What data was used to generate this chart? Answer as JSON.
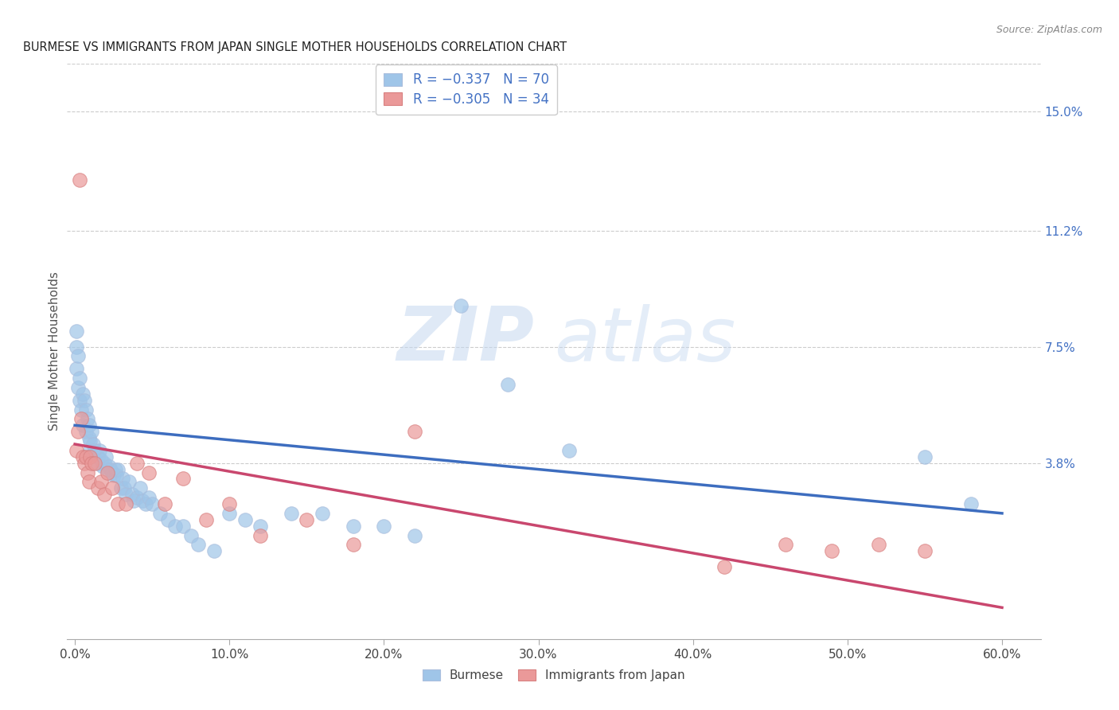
{
  "title": "BURMESE VS IMMIGRANTS FROM JAPAN SINGLE MOTHER HOUSEHOLDS CORRELATION CHART",
  "source": "Source: ZipAtlas.com",
  "xlabel_ticks": [
    "0.0%",
    "10.0%",
    "20.0%",
    "30.0%",
    "40.0%",
    "50.0%",
    "60.0%"
  ],
  "xlabel_vals": [
    0.0,
    0.1,
    0.2,
    0.3,
    0.4,
    0.5,
    0.6
  ],
  "ylabel": "Single Mother Households",
  "ylabel_ticks_right": [
    "15.0%",
    "11.2%",
    "7.5%",
    "3.8%"
  ],
  "ylabel_vals_right": [
    0.15,
    0.112,
    0.075,
    0.038
  ],
  "xlim": [
    -0.005,
    0.625
  ],
  "ylim": [
    -0.018,
    0.165
  ],
  "legend_blue_label": "R = −0.337   N = 70",
  "legend_pink_label": "R = −0.305   N = 34",
  "series_blue_color": "#9fc5e8",
  "series_pink_color": "#ea9999",
  "line_blue_color": "#3d6dbf",
  "line_pink_color": "#c9476e",
  "watermark_zip": "ZIP",
  "watermark_atlas": "atlas",
  "blue_scatter_x": [
    0.001,
    0.001,
    0.001,
    0.002,
    0.002,
    0.003,
    0.003,
    0.004,
    0.005,
    0.005,
    0.006,
    0.007,
    0.007,
    0.008,
    0.009,
    0.009,
    0.01,
    0.01,
    0.011,
    0.012,
    0.013,
    0.014,
    0.015,
    0.015,
    0.016,
    0.017,
    0.018,
    0.019,
    0.02,
    0.021,
    0.022,
    0.023,
    0.024,
    0.025,
    0.026,
    0.027,
    0.028,
    0.03,
    0.031,
    0.032,
    0.033,
    0.035,
    0.037,
    0.038,
    0.04,
    0.042,
    0.044,
    0.046,
    0.048,
    0.05,
    0.055,
    0.06,
    0.065,
    0.07,
    0.075,
    0.08,
    0.09,
    0.1,
    0.11,
    0.12,
    0.14,
    0.16,
    0.18,
    0.2,
    0.22,
    0.25,
    0.28,
    0.32,
    0.55,
    0.58
  ],
  "blue_scatter_y": [
    0.075,
    0.08,
    0.068,
    0.072,
    0.062,
    0.065,
    0.058,
    0.055,
    0.06,
    0.05,
    0.058,
    0.055,
    0.048,
    0.052,
    0.046,
    0.05,
    0.042,
    0.045,
    0.048,
    0.044,
    0.042,
    0.041,
    0.04,
    0.038,
    0.042,
    0.039,
    0.037,
    0.038,
    0.04,
    0.036,
    0.037,
    0.036,
    0.035,
    0.034,
    0.036,
    0.034,
    0.036,
    0.03,
    0.033,
    0.03,
    0.028,
    0.032,
    0.028,
    0.026,
    0.027,
    0.03,
    0.026,
    0.025,
    0.027,
    0.025,
    0.022,
    0.02,
    0.018,
    0.018,
    0.015,
    0.012,
    0.01,
    0.022,
    0.02,
    0.018,
    0.022,
    0.022,
    0.018,
    0.018,
    0.015,
    0.088,
    0.063,
    0.042,
    0.04,
    0.025
  ],
  "pink_scatter_x": [
    0.001,
    0.002,
    0.003,
    0.004,
    0.005,
    0.006,
    0.007,
    0.008,
    0.009,
    0.01,
    0.011,
    0.013,
    0.015,
    0.017,
    0.019,
    0.021,
    0.024,
    0.028,
    0.033,
    0.04,
    0.048,
    0.058,
    0.07,
    0.085,
    0.1,
    0.12,
    0.15,
    0.18,
    0.22,
    0.42,
    0.46,
    0.49,
    0.52,
    0.55
  ],
  "pink_scatter_y": [
    0.042,
    0.048,
    0.128,
    0.052,
    0.04,
    0.038,
    0.04,
    0.035,
    0.032,
    0.04,
    0.038,
    0.038,
    0.03,
    0.032,
    0.028,
    0.035,
    0.03,
    0.025,
    0.025,
    0.038,
    0.035,
    0.025,
    0.033,
    0.02,
    0.025,
    0.015,
    0.02,
    0.012,
    0.048,
    0.005,
    0.012,
    0.01,
    0.012,
    0.01
  ],
  "blue_line_x": [
    0.0,
    0.6
  ],
  "blue_line_y_start": 0.05,
  "blue_line_y_end": 0.022,
  "pink_line_x": [
    0.0,
    0.6
  ],
  "pink_line_y_start": 0.044,
  "pink_line_y_end": -0.008
}
